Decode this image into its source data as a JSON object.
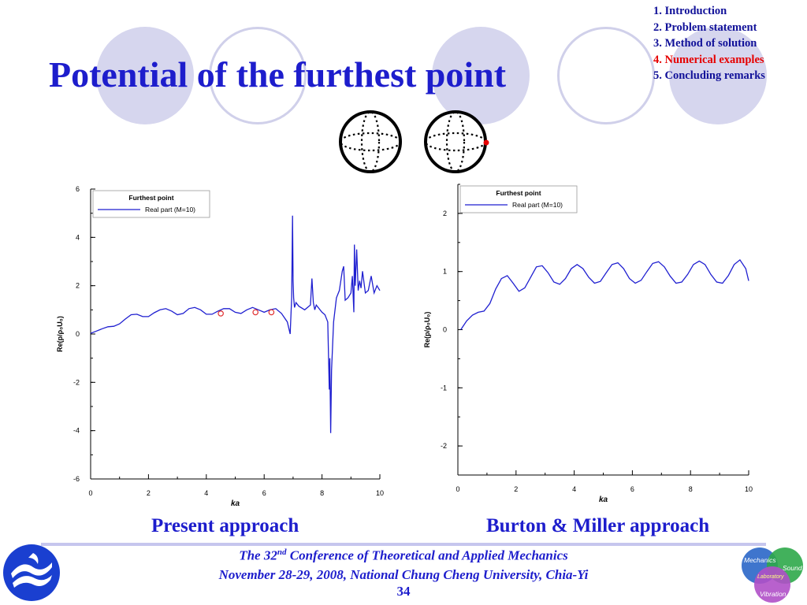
{
  "slide": {
    "title": "Potential of the furthest point",
    "outline": [
      {
        "label": "1. Introduction",
        "active": false
      },
      {
        "label": "2. Problem statement",
        "active": false
      },
      {
        "label": "3. Method of solution",
        "active": false
      },
      {
        "label": "4. Numerical examples",
        "active": true
      },
      {
        "label": "5. Concluding remarks",
        "active": false
      }
    ],
    "captions": {
      "left": "Present approach",
      "right": "Burton & Miller approach"
    },
    "footer": {
      "line1_prefix": "The 32",
      "line1_sup": "nd",
      "line1_suffix": " Conference of Theoretical and Applied Mechanics",
      "line2": "November 28-29, 2008, National Chung Cheng University, Chia-Yi",
      "page": "34"
    },
    "badge": {
      "mechanics": "Mechanics",
      "sound": "Sound",
      "laboratory": "Laboratory",
      "vibration": "Vibration"
    },
    "colors": {
      "accent": "#1d1dcc",
      "active": "#e60000",
      "curve": "#1f1fd0",
      "marker": "#e03030"
    }
  },
  "chart_data": [
    {
      "type": "line",
      "xlabel": "ka",
      "ylabel": "Re(p/ρ₀U₀)",
      "xlim": [
        0,
        10
      ],
      "ylim": [
        -6,
        6
      ],
      "xticks": [
        "0",
        "2",
        "4",
        "6",
        "8",
        "10"
      ],
      "yticks": [
        "6",
        "4",
        "2",
        "0",
        "-2",
        "-4",
        "-6"
      ],
      "legend_title": "Furthest point",
      "series": [
        {
          "name": "Real part (M=10)"
        }
      ],
      "x": [
        0,
        0.2,
        0.4,
        0.6,
        0.8,
        1.0,
        1.2,
        1.4,
        1.6,
        1.8,
        2.0,
        2.2,
        2.4,
        2.6,
        2.8,
        3.0,
        3.2,
        3.4,
        3.6,
        3.8,
        4.0,
        4.2,
        4.4,
        4.6,
        4.8,
        5.0,
        5.2,
        5.4,
        5.6,
        5.8,
        6.0,
        6.2,
        6.4,
        6.6,
        6.8,
        6.9,
        6.95,
        6.98,
        7.0,
        7.02,
        7.05,
        7.1,
        7.2,
        7.4,
        7.6,
        7.65,
        7.7,
        7.75,
        7.8,
        8.0,
        8.1,
        8.2,
        8.25,
        8.27,
        8.3,
        8.33,
        8.4,
        8.5,
        8.6,
        8.7,
        8.75,
        8.8,
        8.9,
        9.0,
        9.05,
        9.1,
        9.12,
        9.15,
        9.2,
        9.25,
        9.3,
        9.35,
        9.4,
        9.5,
        9.6,
        9.7,
        9.8,
        9.9,
        10.0
      ],
      "values": [
        0.03,
        0.12,
        0.22,
        0.3,
        0.32,
        0.42,
        0.62,
        0.8,
        0.82,
        0.72,
        0.72,
        0.88,
        1.0,
        1.05,
        0.95,
        0.8,
        0.85,
        1.05,
        1.1,
        1.0,
        0.82,
        0.82,
        0.95,
        1.05,
        1.05,
        0.9,
        0.85,
        1.0,
        1.1,
        1.0,
        0.9,
        1.0,
        1.05,
        0.85,
        0.5,
        0.0,
        1.5,
        4.9,
        2.2,
        1.5,
        1.1,
        1.3,
        1.15,
        1.0,
        1.2,
        2.3,
        1.3,
        1.0,
        1.2,
        0.9,
        0.8,
        0.5,
        -2.3,
        -1.0,
        -4.1,
        -1.5,
        0.5,
        1.5,
        1.8,
        2.6,
        2.8,
        1.4,
        1.5,
        1.7,
        2.4,
        0.9,
        3.7,
        2.0,
        3.5,
        1.8,
        2.2,
        1.9,
        2.6,
        1.7,
        1.8,
        2.4,
        1.7,
        2.0,
        1.8
      ],
      "markers": [
        {
          "x": 4.5,
          "y": 0.85
        },
        {
          "x": 5.7,
          "y": 0.9
        },
        {
          "x": 6.25,
          "y": 0.9
        }
      ]
    },
    {
      "type": "line",
      "xlabel": "ka",
      "ylabel": "Re(p/ρ₀U₀)",
      "xlim": [
        0,
        10
      ],
      "ylim": [
        -2.5,
        2.5
      ],
      "xticks": [
        "0",
        "2",
        "4",
        "6",
        "8",
        "10"
      ],
      "yticks": [
        "2",
        "1",
        "0",
        "-1",
        "-2"
      ],
      "legend_title": "Furthest point",
      "series": [
        {
          "name": "Real part (M=10)"
        }
      ],
      "x": [
        0.1,
        0.3,
        0.5,
        0.7,
        0.9,
        1.1,
        1.3,
        1.5,
        1.7,
        1.9,
        2.1,
        2.3,
        2.5,
        2.7,
        2.9,
        3.1,
        3.3,
        3.5,
        3.7,
        3.9,
        4.1,
        4.3,
        4.5,
        4.7,
        4.9,
        5.1,
        5.3,
        5.5,
        5.7,
        5.9,
        6.1,
        6.3,
        6.5,
        6.7,
        6.9,
        7.1,
        7.3,
        7.5,
        7.7,
        7.9,
        8.1,
        8.3,
        8.5,
        8.7,
        8.9,
        9.1,
        9.3,
        9.5,
        9.7,
        9.9,
        10.0
      ],
      "values": [
        0.0,
        0.15,
        0.25,
        0.3,
        0.32,
        0.45,
        0.7,
        0.88,
        0.93,
        0.8,
        0.66,
        0.72,
        0.9,
        1.08,
        1.1,
        0.98,
        0.82,
        0.78,
        0.88,
        1.05,
        1.12,
        1.05,
        0.9,
        0.8,
        0.83,
        0.98,
        1.12,
        1.15,
        1.05,
        0.88,
        0.8,
        0.85,
        1.0,
        1.14,
        1.17,
        1.08,
        0.92,
        0.8,
        0.82,
        0.95,
        1.12,
        1.18,
        1.12,
        0.95,
        0.82,
        0.8,
        0.93,
        1.12,
        1.2,
        1.05,
        0.84
      ]
    }
  ]
}
